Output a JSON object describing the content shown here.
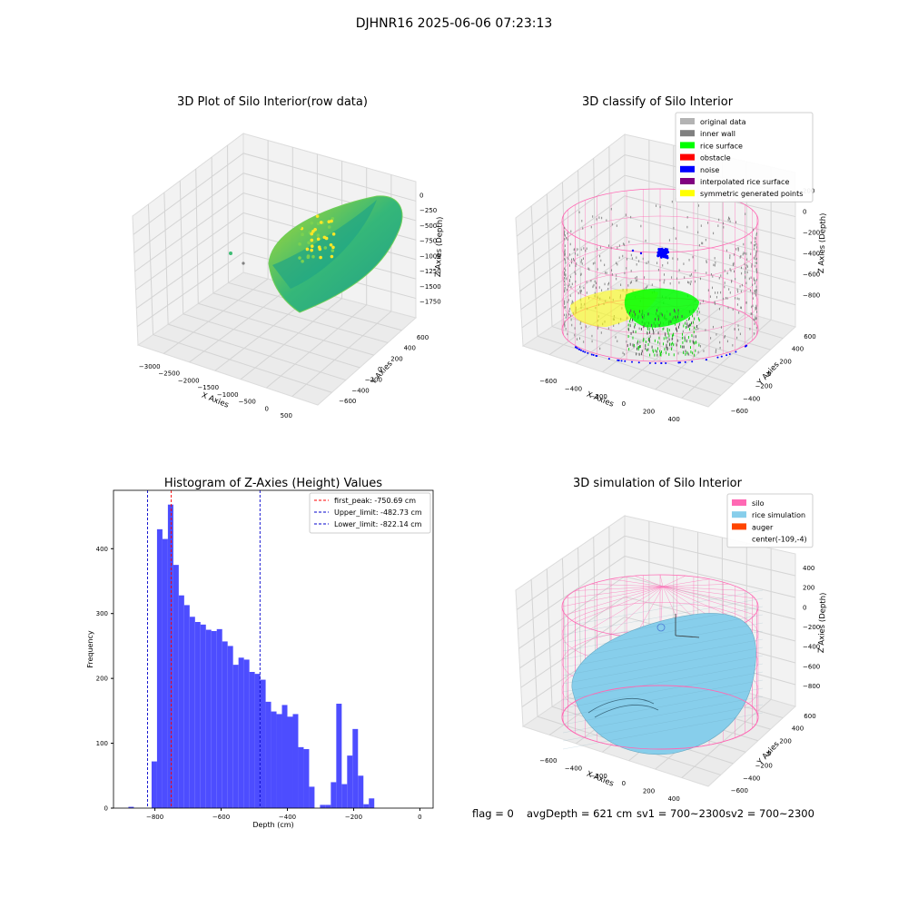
{
  "suptitle": "DJHNR16 2025-06-06 07:23:13",
  "footer": {
    "flag": "flag = 0",
    "avg_depth": "avgDepth = 621 cm",
    "sv1": "sv1 = 700~2300",
    "sv2": "sv2 = 700~2300"
  },
  "colors": {
    "histogram_bar": "#4d4dff",
    "first_peak_line": "#ff0000",
    "limit_line": "#0000cc",
    "silo_wire": "#ff69b4",
    "rice_simulation": "#87ceeb",
    "auger": "#ff4500",
    "rice_surface": "#00ff00",
    "noise": "#0000ff",
    "inner_wall": "#808080",
    "original_data": "#b3b3b3",
    "interpolated_rice_surface": "#800080",
    "symmetric_generated_points": "#ffff00",
    "obstacle": "#ff0000"
  },
  "chart_data": [
    {
      "type": "scatter3d",
      "title": "3D Plot of Silo Interior(row data)",
      "xlabel": "X Axies",
      "ylabel": "Y Axies",
      "zlabel": "Z Axies (Depth)",
      "x_ticks": [
        "−3000",
        "−2500",
        "−2000",
        "−1500",
        "−1000",
        "−500",
        "0",
        "500"
      ],
      "y_ticks": [
        "−600",
        "−400",
        "−200",
        "0",
        "200",
        "400",
        "600"
      ],
      "z_ticks": [
        "0",
        "−250",
        "−500",
        "−750",
        "−1000",
        "−1250",
        "−1500",
        "−1750"
      ],
      "colormap": "viridis",
      "description_surface": "bowl-shaped point cloud"
    },
    {
      "type": "scatter3d",
      "title": "3D classify of Silo Interior",
      "xlabel": "X Axies",
      "ylabel": "Y Axies",
      "zlabel": "Z Axies (Depth)",
      "x_ticks": [
        "−600",
        "−400",
        "−200",
        "0",
        "200",
        "400"
      ],
      "y_ticks": [
        "−600",
        "−400",
        "−200",
        "0",
        "200",
        "400",
        "600"
      ],
      "z_ticks": [
        "200",
        "0",
        "−200",
        "−400",
        "−600",
        "−800"
      ],
      "legend": [
        {
          "label": "original data",
          "color": "#b3b3b3"
        },
        {
          "label": "inner wall",
          "color": "#808080"
        },
        {
          "label": "rice surface",
          "color": "#00ff00"
        },
        {
          "label": "obstacle",
          "color": "#ff0000"
        },
        {
          "label": "noise",
          "color": "#0000ff"
        },
        {
          "label": "interpolated rice surface",
          "color": "#800080"
        },
        {
          "label": "symmetric generated points",
          "color": "#ffff00"
        }
      ],
      "legend_position": "top-right"
    },
    {
      "type": "bar",
      "title": "Histogram of Z-Axies (Height) Values",
      "xlabel": "Depth (cm)",
      "ylabel": "Frequency",
      "xlim": [
        -925,
        40
      ],
      "ylim": [
        0,
        490
      ],
      "x_ticks": [
        -800,
        -600,
        -400,
        -200,
        0
      ],
      "x_tick_labels": [
        "−800",
        "−600",
        "−400",
        "−200",
        "0"
      ],
      "y_ticks": [
        0,
        100,
        200,
        300,
        400
      ],
      "bin_start": -810,
      "bin_width": 16.4,
      "values": [
        72,
        430,
        415,
        468,
        375,
        328,
        313,
        295,
        287,
        283,
        275,
        273,
        276,
        257,
        250,
        221,
        232,
        229,
        210,
        207,
        198,
        164,
        149,
        145,
        159,
        141,
        145,
        94,
        91,
        33,
        0,
        5,
        5,
        40,
        161,
        37,
        81,
        122,
        50,
        6,
        15
      ],
      "outliers": [
        {
          "x": -880,
          "value": 2
        }
      ],
      "vlines": [
        {
          "name": "first_peak",
          "x": -750.69,
          "label": "first_peak: -750.69 cm",
          "color": "#ff0000"
        },
        {
          "name": "upper_limit",
          "x": -482.73,
          "label": "Upper_limit: -482.73 cm",
          "color": "#0000cc"
        },
        {
          "name": "lower_limit",
          "x": -822.14,
          "label": "Lower_limit: -822.14 cm",
          "color": "#0000cc"
        }
      ],
      "legend_position": "top-right",
      "grid": false
    },
    {
      "type": "surface3d",
      "title": "3D simulation of Silo Interior",
      "xlabel": "X Axies",
      "ylabel": "Y Axies",
      "zlabel": "Z Axies (Depth)",
      "x_ticks": [
        "−600",
        "−400",
        "−200",
        "0",
        "200",
        "400"
      ],
      "y_ticks": [
        "−600",
        "−400",
        "−200",
        "0",
        "200",
        "400",
        "600"
      ],
      "z_ticks": [
        "400",
        "200",
        "0",
        "−200",
        "−400",
        "−600",
        "−800"
      ],
      "legend": [
        {
          "label": "silo",
          "color": "#ff69b4"
        },
        {
          "label": "rice simulation",
          "color": "#87ceeb"
        },
        {
          "label": "auger",
          "color": "#ff4500"
        },
        {
          "label": "center(-109,-4)",
          "color": ""
        }
      ],
      "legend_position": "top-right"
    }
  ]
}
